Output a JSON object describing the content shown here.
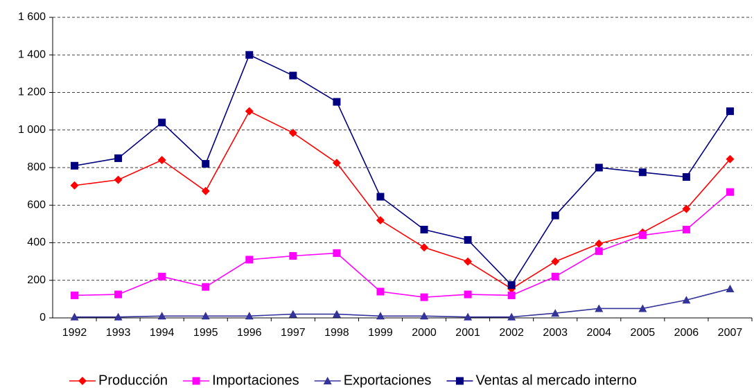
{
  "chart_data": {
    "type": "line",
    "categories": [
      "1992",
      "1993",
      "1994",
      "1995",
      "1996",
      "1997",
      "1998",
      "1999",
      "2000",
      "2001",
      "2002",
      "2003",
      "2004",
      "2005",
      "2006",
      "2007"
    ],
    "series": [
      {
        "name": "Producción",
        "color": "#ff0000",
        "marker": "diamond",
        "values": [
          705,
          735,
          840,
          675,
          1100,
          985,
          825,
          520,
          375,
          300,
          155,
          300,
          395,
          455,
          580,
          845
        ]
      },
      {
        "name": "Importaciones",
        "color": "#ff00ff",
        "marker": "square",
        "values": [
          120,
          125,
          220,
          165,
          310,
          330,
          345,
          140,
          110,
          125,
          120,
          220,
          355,
          440,
          470,
          670
        ]
      },
      {
        "name": "Exportaciones",
        "color": "#333399",
        "marker": "triangle",
        "values": [
          5,
          5,
          10,
          10,
          10,
          20,
          20,
          10,
          10,
          5,
          5,
          25,
          50,
          50,
          95,
          155
        ]
      },
      {
        "name": "Ventas al mercado interno",
        "color": "#000080",
        "marker": "square",
        "values": [
          810,
          850,
          1040,
          820,
          1400,
          1290,
          1150,
          645,
          470,
          415,
          175,
          545,
          800,
          775,
          750,
          1100
        ]
      }
    ],
    "ylim": [
      0,
      1600
    ],
    "yticks": [
      0,
      200,
      400,
      600,
      800,
      {
        "value": 1000,
        "label": "1 000"
      },
      {
        "value": 1200,
        "label": "1 200"
      },
      {
        "value": 1400,
        "label": "1 400"
      },
      {
        "value": 1600,
        "label": "1 600"
      }
    ],
    "grid": true,
    "legend": "bottom"
  }
}
